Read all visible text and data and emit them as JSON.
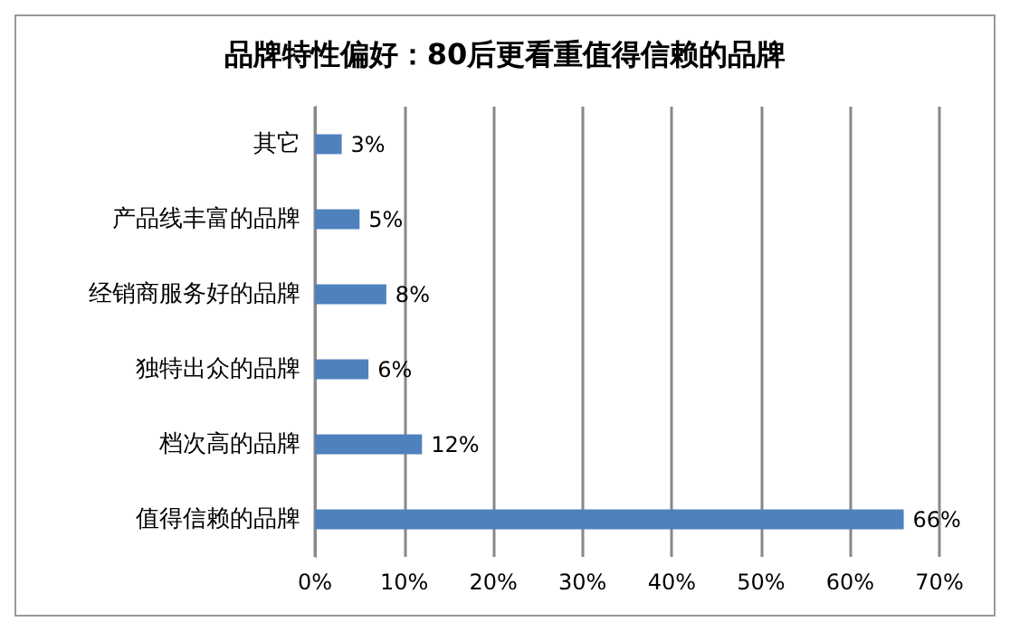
{
  "chart_data": {
    "type": "bar",
    "orientation": "horizontal",
    "title": "品牌特性偏好：80后更看重值得信赖的品牌",
    "categories": [
      "其它",
      "产品线丰富的品牌",
      "经销商服务好的品牌",
      "独特出众的品牌",
      "档次高的品牌",
      "值得信赖的品牌"
    ],
    "values": [
      3,
      5,
      8,
      6,
      12,
      66
    ],
    "value_labels": [
      "3%",
      "5%",
      "8%",
      "6%",
      "12%",
      "66%"
    ],
    "color": "#4f81bd",
    "xlim": [
      0,
      70
    ],
    "xticks": [
      {
        "value": 0,
        "label": "0%"
      },
      {
        "value": 10,
        "label": "10%"
      },
      {
        "value": 20,
        "label": "20%"
      },
      {
        "value": 30,
        "label": "30%"
      },
      {
        "value": 40,
        "label": "40%"
      },
      {
        "value": 50,
        "label": "50%"
      },
      {
        "value": 60,
        "label": "60%"
      },
      {
        "value": 70,
        "label": "70%"
      }
    ],
    "grid": "x"
  }
}
